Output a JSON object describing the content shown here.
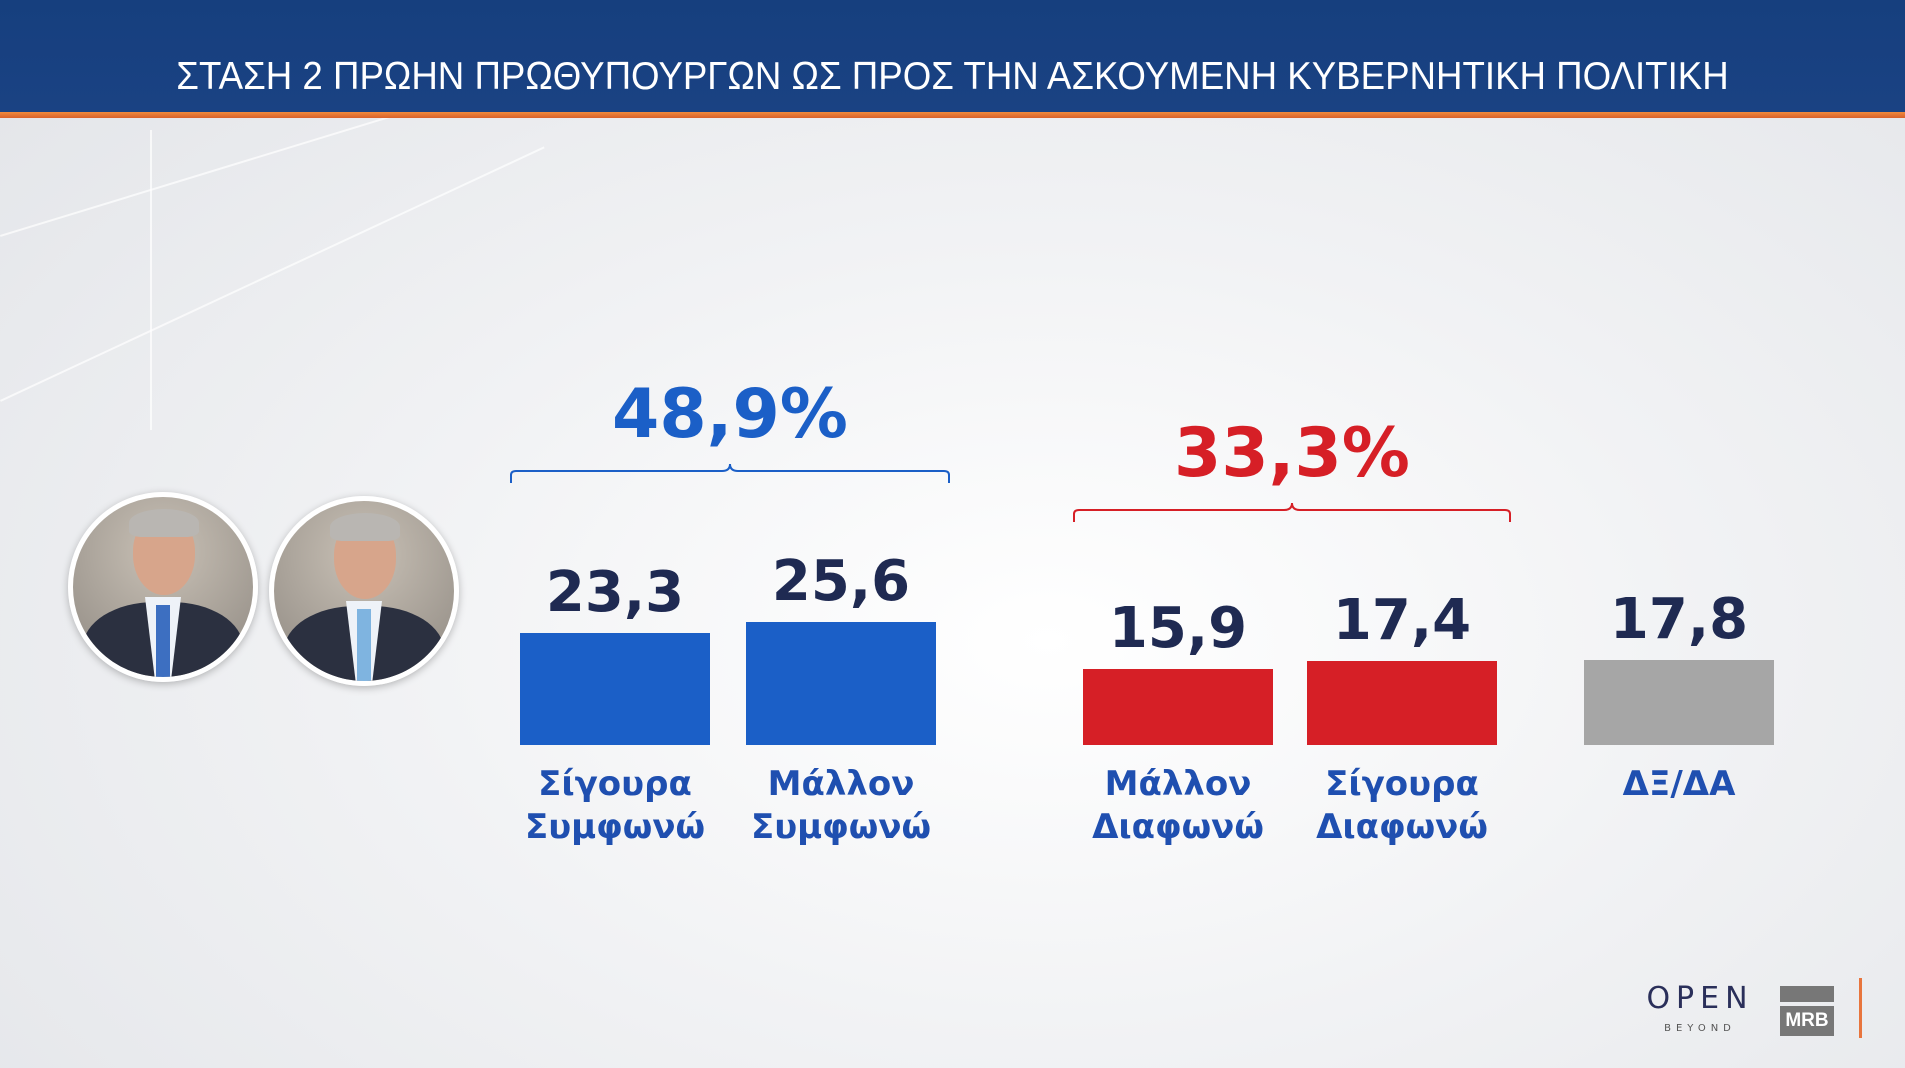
{
  "header": {
    "title": "ΣΤΑΣΗ 2 ΠΡΩΗΝ ΠΡΩΘΥΠΟΥΡΓΩΝ  ΩΣ ΠΡΟΣ ΤΗΝ ΑΣΚΟΥΜΕΝΗ ΚΥΒΕΡΝΗΤΙΚΗ ΠΟΛΙΤΙΚΗ"
  },
  "chart_data": {
    "type": "bar",
    "title": "ΣΤΑΣΗ 2 ΠΡΩΗΝ ΠΡΩΘΥΠΟΥΡΓΩΝ  ΩΣ ΠΡΟΣ ΤΗΝ ΑΣΚΟΥΜΕΝΗ ΚΥΒΕΡΝΗΤΙΚΗ ΠΟΛΙΤΙΚΗ",
    "categories": [
      [
        "Σίγουρα",
        "Συμφωνώ"
      ],
      [
        "Μάλλον",
        "Συμφωνώ"
      ],
      [
        "Μάλλον",
        "Διαφωνώ"
      ],
      [
        "Σίγουρα",
        "Διαφωνώ"
      ],
      [
        "ΔΞ/ΔΑ"
      ]
    ],
    "values": [
      23.3,
      25.6,
      15.9,
      17.4,
      17.8
    ],
    "value_labels": [
      "23,3",
      "25,6",
      "15,9",
      "17,4",
      "17,8"
    ],
    "colors": [
      "#1b5fc7",
      "#1b5fc7",
      "#d61f26",
      "#d61f26",
      "#a6a6a6"
    ],
    "groups": [
      {
        "label": "48,9%",
        "value": 48.9,
        "members": [
          0,
          1
        ],
        "color": "#1b5fc7"
      },
      {
        "label": "33,3%",
        "value": 33.3,
        "members": [
          2,
          3
        ],
        "color": "#d61f26"
      }
    ],
    "xlabel": "",
    "ylabel": "",
    "grid": false,
    "legend": "none"
  },
  "logos": {
    "broadcaster": "OPEN",
    "broadcaster_sub": "BEYOND",
    "pollster": "MRB",
    "separator_color": "#e8753d"
  }
}
